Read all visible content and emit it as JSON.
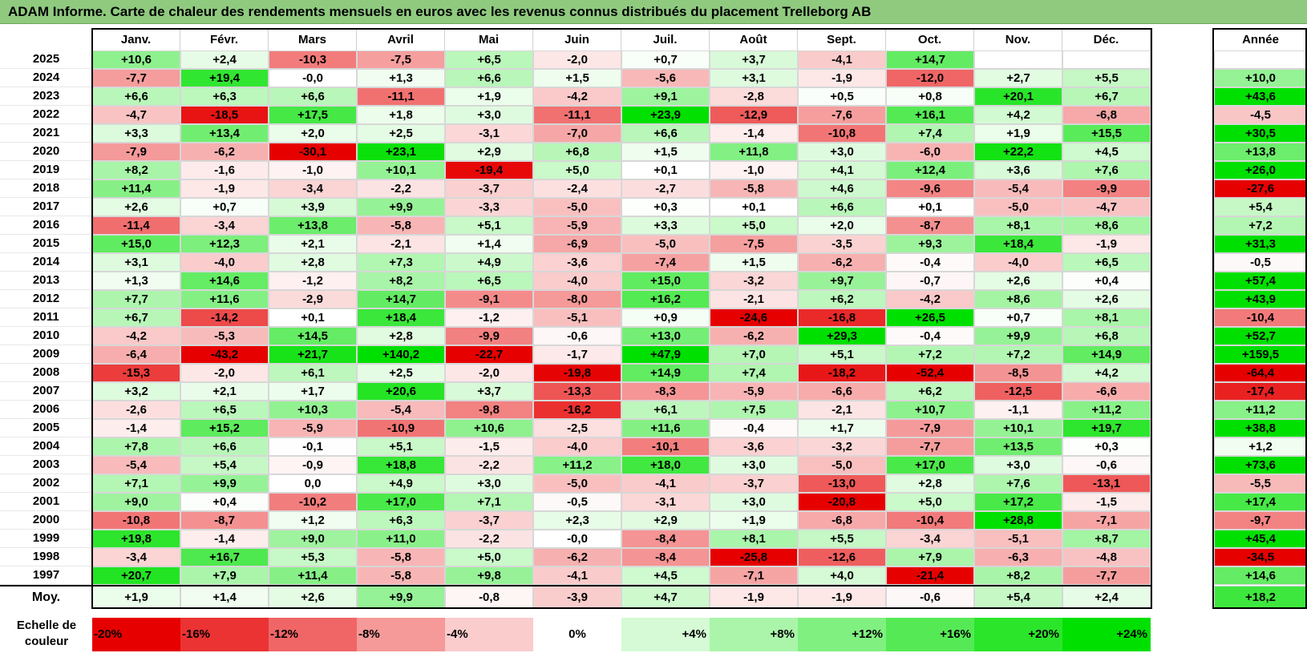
{
  "title": "ADAM Informe. Carte de chaleur des rendements mensuels en euros avec les revenus connus distribués du placement Trelleborg AB",
  "colors": {
    "title_bg": "#8fca7f",
    "pos_max": "#00e000",
    "neg_max": "#e60000",
    "neutral": "#ffffff"
  },
  "chart_data": {
    "type": "heatmap",
    "title": "ADAM Informe. Carte de chaleur des rendements mensuels en euros avec les revenus connus distribués du placement Trelleborg AB",
    "months": [
      "Janv.",
      "Févr.",
      "Mars",
      "Avril",
      "Mai",
      "Juin",
      "Juil.",
      "Août",
      "Sept.",
      "Oct.",
      "Nov.",
      "Déc."
    ],
    "annual_header": "Année",
    "rows": [
      {
        "year": "2025",
        "values": [
          "+10,6",
          "+2,4",
          "-10,3",
          "-7,5",
          "+6,5",
          "-2,0",
          "+0,7",
          "+3,7",
          "-4,1",
          "+14,7",
          "",
          ""
        ],
        "annual": ""
      },
      {
        "year": "2024",
        "values": [
          "-7,7",
          "+19,4",
          "-0,0",
          "+1,3",
          "+6,6",
          "+1,5",
          "-5,6",
          "+3,1",
          "-1,9",
          "-12,0",
          "+2,7",
          "+5,5"
        ],
        "annual": "+10,0"
      },
      {
        "year": "2023",
        "values": [
          "+6,6",
          "+6,3",
          "+6,6",
          "-11,1",
          "+1,9",
          "-4,2",
          "+9,1",
          "-2,8",
          "+0,5",
          "+0,8",
          "+20,1",
          "+6,7"
        ],
        "annual": "+43,6"
      },
      {
        "year": "2022",
        "values": [
          "-4,7",
          "-18,5",
          "+17,5",
          "+1,8",
          "+3,0",
          "-11,1",
          "+23,9",
          "-12,9",
          "-7,6",
          "+16,1",
          "+4,2",
          "-6,8"
        ],
        "annual": "-4,5"
      },
      {
        "year": "2021",
        "values": [
          "+3,3",
          "+13,4",
          "+2,0",
          "+2,5",
          "-3,1",
          "-7,0",
          "+6,6",
          "-1,4",
          "-10,8",
          "+7,4",
          "+1,9",
          "+15,5"
        ],
        "annual": "+30,5"
      },
      {
        "year": "2020",
        "values": [
          "-7,9",
          "-6,2",
          "-30,1",
          "+23,1",
          "+2,9",
          "+6,8",
          "+1,5",
          "+11,8",
          "+3,0",
          "-6,0",
          "+22,2",
          "+4,5"
        ],
        "annual": "+13,8"
      },
      {
        "year": "2019",
        "values": [
          "+8,2",
          "-1,6",
          "-1,0",
          "+10,1",
          "-19,4",
          "+5,0",
          "+0,1",
          "-1,0",
          "+4,1",
          "+12,4",
          "+3,6",
          "+7,6"
        ],
        "annual": "+26,0"
      },
      {
        "year": "2018",
        "values": [
          "+11,4",
          "-1,9",
          "-3,4",
          "-2,2",
          "-3,7",
          "-2,4",
          "-2,7",
          "-5,8",
          "+4,6",
          "-9,6",
          "-5,4",
          "-9,9"
        ],
        "annual": "-27,6"
      },
      {
        "year": "2017",
        "values": [
          "+2,6",
          "+0,7",
          "+3,9",
          "+9,9",
          "-3,3",
          "-5,0",
          "+0,3",
          "+0,1",
          "+6,6",
          "+0,1",
          "-5,0",
          "-4,7"
        ],
        "annual": "+5,4"
      },
      {
        "year": "2016",
        "values": [
          "-11,4",
          "-3,4",
          "+13,8",
          "-5,8",
          "+5,1",
          "-5,9",
          "+3,3",
          "+5,0",
          "+2,0",
          "-8,7",
          "+8,1",
          "+8,6"
        ],
        "annual": "+7,2"
      },
      {
        "year": "2015",
        "values": [
          "+15,0",
          "+12,3",
          "+2,1",
          "-2,1",
          "+1,4",
          "-6,9",
          "-5,0",
          "-7,5",
          "-3,5",
          "+9,3",
          "+18,4",
          "-1,9"
        ],
        "annual": "+31,3"
      },
      {
        "year": "2014",
        "values": [
          "+3,1",
          "-4,0",
          "+2,8",
          "+7,3",
          "+4,9",
          "-3,6",
          "-7,4",
          "+1,5",
          "-6,2",
          "-0,4",
          "-4,0",
          "+6,5"
        ],
        "annual": "-0,5"
      },
      {
        "year": "2013",
        "values": [
          "+1,3",
          "+14,6",
          "-1,2",
          "+8,2",
          "+6,5",
          "-4,0",
          "+15,0",
          "-3,2",
          "+9,7",
          "-0,7",
          "+2,6",
          "+0,4"
        ],
        "annual": "+57,4"
      },
      {
        "year": "2012",
        "values": [
          "+7,7",
          "+11,6",
          "-2,9",
          "+14,7",
          "-9,1",
          "-8,0",
          "+16,2",
          "-2,1",
          "+6,2",
          "-4,2",
          "+8,6",
          "+2,6"
        ],
        "annual": "+43,9"
      },
      {
        "year": "2011",
        "values": [
          "+6,7",
          "-14,2",
          "+0,1",
          "+18,4",
          "-1,2",
          "-5,1",
          "+0,9",
          "-24,6",
          "-16,8",
          "+26,5",
          "+0,7",
          "+8,1"
        ],
        "annual": "-10,4"
      },
      {
        "year": "2010",
        "values": [
          "-4,2",
          "-5,3",
          "+14,5",
          "+2,8",
          "-9,9",
          "-0,6",
          "+13,0",
          "-6,2",
          "+29,3",
          "-0,4",
          "+9,9",
          "+6,8"
        ],
        "annual": "+52,7"
      },
      {
        "year": "2009",
        "values": [
          "-6,4",
          "-43,2",
          "+21,7",
          "+140,2",
          "-22,7",
          "-1,7",
          "+47,9",
          "+7,0",
          "+5,1",
          "+7,2",
          "+7,2",
          "+14,9"
        ],
        "annual": "+159,5"
      },
      {
        "year": "2008",
        "values": [
          "-15,3",
          "-2,0",
          "+6,1",
          "+2,5",
          "-2,0",
          "-19,8",
          "+14,9",
          "+7,4",
          "-18,2",
          "-52,4",
          "-8,5",
          "+4,2"
        ],
        "annual": "-64,4"
      },
      {
        "year": "2007",
        "values": [
          "+3,2",
          "+2,1",
          "+1,7",
          "+20,6",
          "+3,7",
          "-13,3",
          "-8,3",
          "-5,9",
          "-6,6",
          "+6,2",
          "-12,5",
          "-6,6"
        ],
        "annual": "-17,4"
      },
      {
        "year": "2006",
        "values": [
          "-2,6",
          "+6,5",
          "+10,3",
          "-5,4",
          "-9,8",
          "-16,2",
          "+6,1",
          "+7,5",
          "-2,1",
          "+10,7",
          "-1,1",
          "+11,2"
        ],
        "annual": "+11,2"
      },
      {
        "year": "2005",
        "values": [
          "-1,4",
          "+15,2",
          "-5,9",
          "-10,9",
          "+10,6",
          "-2,5",
          "+11,6",
          "-0,4",
          "+1,7",
          "-7,9",
          "+10,1",
          "+19,7"
        ],
        "annual": "+38,8"
      },
      {
        "year": "2004",
        "values": [
          "+7,8",
          "+6,6",
          "-0,1",
          "+5,1",
          "-1,5",
          "-4,0",
          "-10,1",
          "-3,6",
          "-3,2",
          "-7,7",
          "+13,5",
          "+0,3"
        ],
        "annual": "+1,2"
      },
      {
        "year": "2003",
        "values": [
          "-5,4",
          "+5,4",
          "-0,9",
          "+18,8",
          "-2,2",
          "+11,2",
          "+18,0",
          "+3,0",
          "-5,0",
          "+17,0",
          "+3,0",
          "-0,6"
        ],
        "annual": "+73,6"
      },
      {
        "year": "2002",
        "values": [
          "+7,1",
          "+9,9",
          "0,0",
          "+4,9",
          "+3,0",
          "-5,0",
          "-4,1",
          "-3,7",
          "-13,0",
          "+2,8",
          "+7,6",
          "-13,1"
        ],
        "annual": "-5,5"
      },
      {
        "year": "2001",
        "values": [
          "+9,0",
          "+0,4",
          "-10,2",
          "+17,0",
          "+7,1",
          "-0,5",
          "-3,1",
          "+3,0",
          "-20,8",
          "+5,0",
          "+17,2",
          "-1,5"
        ],
        "annual": "+17,4"
      },
      {
        "year": "2000",
        "values": [
          "-10,8",
          "-8,7",
          "+1,2",
          "+6,3",
          "-3,7",
          "+2,3",
          "+2,9",
          "+1,9",
          "-6,8",
          "-10,4",
          "+28,8",
          "-7,1"
        ],
        "annual": "-9,7"
      },
      {
        "year": "1999",
        "values": [
          "+19,8",
          "-1,4",
          "+9,0",
          "+11,0",
          "-2,2",
          "-0,0",
          "-8,4",
          "+8,1",
          "+5,5",
          "-3,4",
          "-5,1",
          "+8,7"
        ],
        "annual": "+45,4"
      },
      {
        "year": "1998",
        "values": [
          "-3,4",
          "+16,7",
          "+5,3",
          "-5,8",
          "+5,0",
          "-6,2",
          "-8,4",
          "-25,8",
          "-12,6",
          "+7,9",
          "-6,3",
          "-4,8"
        ],
        "annual": "-34,5"
      },
      {
        "year": "1997",
        "values": [
          "+20,7",
          "+7,9",
          "+11,4",
          "-5,8",
          "+9,8",
          "-4,1",
          "+4,5",
          "-7,1",
          "+4,0",
          "-21,4",
          "+8,2",
          "-7,7"
        ],
        "annual": "+14,6"
      }
    ],
    "average": {
      "label": "Moy.",
      "values": [
        "+1,9",
        "+1,4",
        "+2,6",
        "+9,9",
        "-0,8",
        "-3,9",
        "+4,7",
        "-1,9",
        "-1,9",
        "-0,6",
        "+5,4",
        "+2,4"
      ],
      "annual": "+18,2"
    },
    "color_scale": {
      "label": "Echelle de\ncouleur",
      "steps": [
        "-20%",
        "-16%",
        "-12%",
        "-8%",
        "-4%",
        "0%",
        "+4%",
        "+8%",
        "+12%",
        "+16%",
        "+20%",
        "+24%"
      ],
      "step_values": [
        -20,
        -16,
        -12,
        -8,
        -4,
        0,
        4,
        8,
        12,
        16,
        20,
        24
      ]
    }
  }
}
